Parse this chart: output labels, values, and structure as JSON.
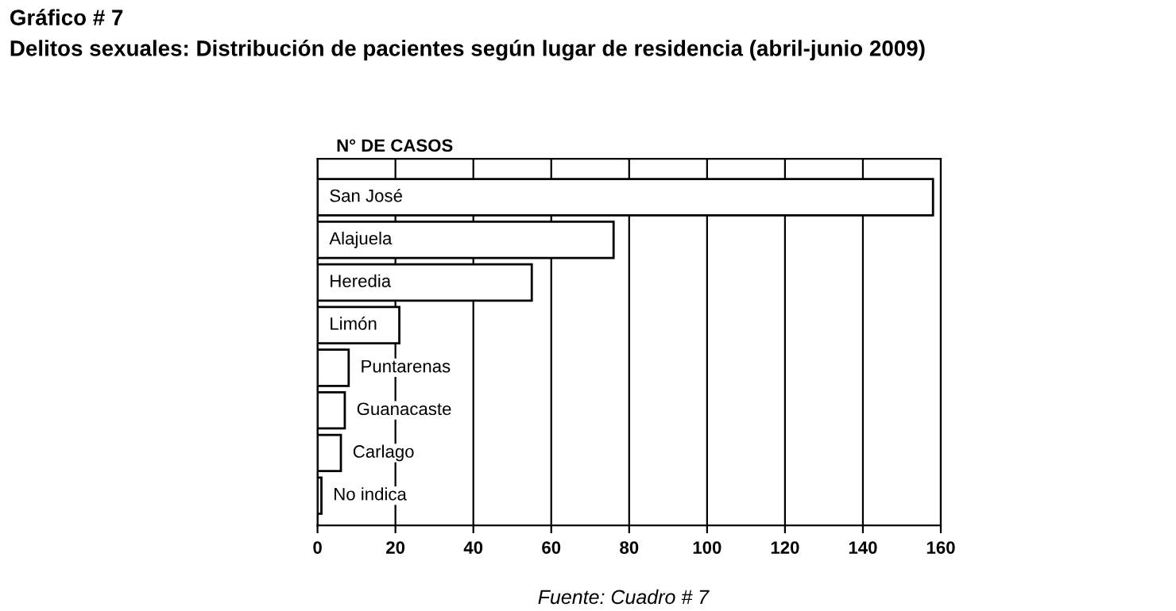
{
  "chart_data": {
    "type": "bar",
    "orientation": "horizontal",
    "title": "Gráfico # 7",
    "subtitle": "Delitos sexuales: Distribución de pacientes según lugar de residencia (abril-junio 2009)",
    "xlabel": "N° DE CASOS",
    "annotations": [
      "Fuente: Cuadro # 7"
    ],
    "categories": [
      "San José",
      "Alajuela",
      "Heredia",
      "Limón",
      "Puntarenas",
      "Guanacaste",
      "Carlago",
      "No indica"
    ],
    "values": [
      158,
      76,
      55,
      21,
      8,
      7,
      6,
      1
    ],
    "color": "#ffffff",
    "xlim": [
      0,
      160
    ],
    "xticks": [
      0,
      20,
      40,
      60,
      80,
      100,
      120,
      140,
      160
    ],
    "grid": "x"
  }
}
